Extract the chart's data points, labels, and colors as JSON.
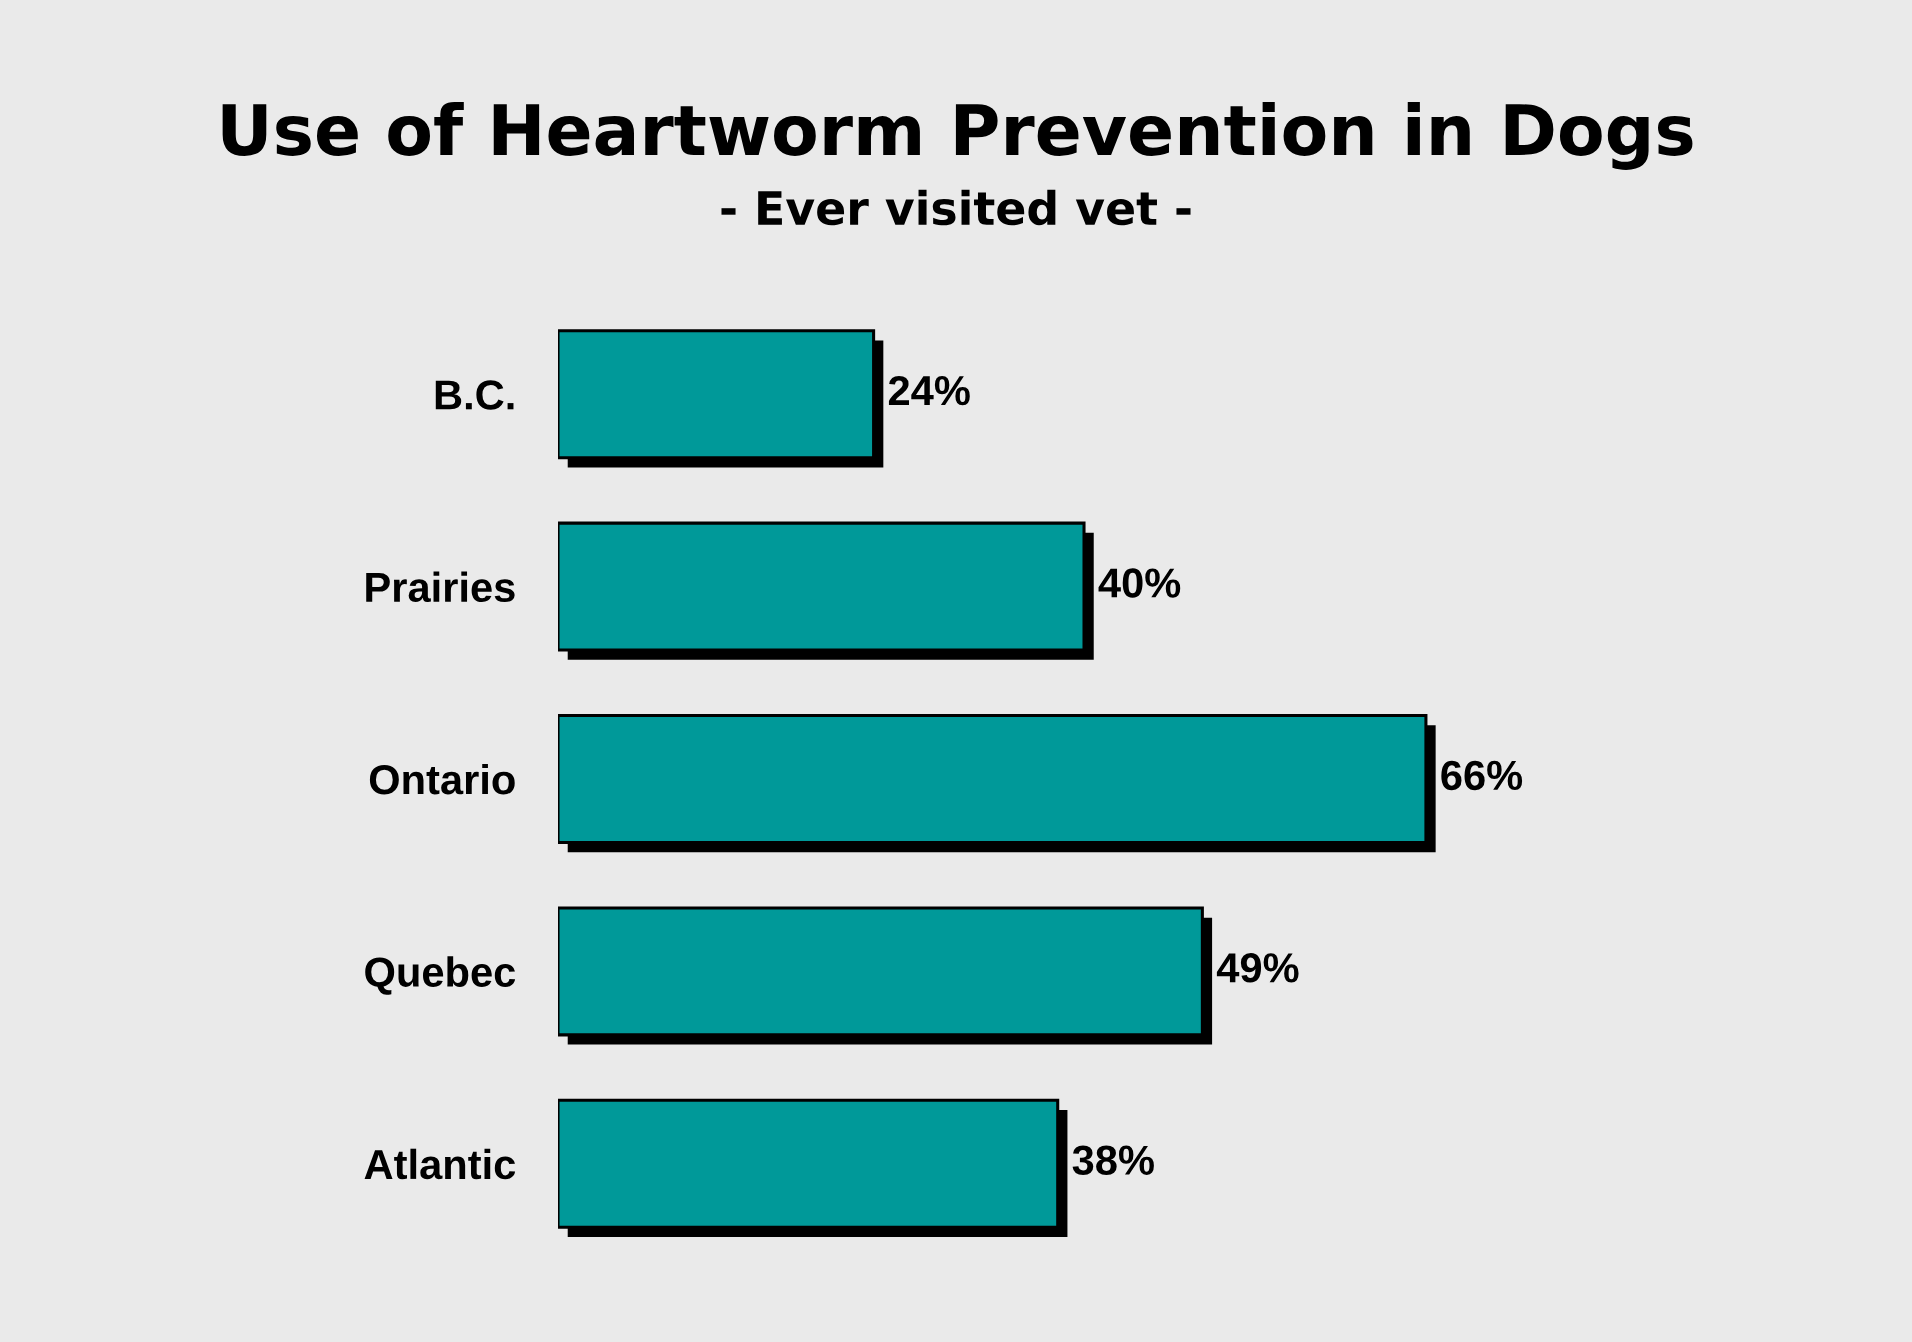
{
  "chart_data": {
    "type": "bar",
    "orientation": "horizontal",
    "title": "Use of Heartworm Prevention in Dogs",
    "subtitle": "- Ever visited vet -",
    "categories": [
      "B.C.",
      "Prairies",
      "Ontario",
      "Quebec",
      "Atlantic"
    ],
    "values": [
      24,
      40,
      66,
      49,
      38
    ],
    "color": "#009999",
    "value_labels": [
      "24%",
      "40%",
      "66%",
      "49%",
      "38%"
    ]
  }
}
